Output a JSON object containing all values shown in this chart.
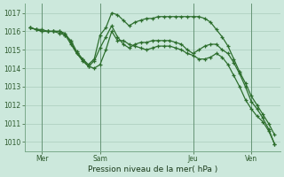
{
  "background_color": "#cce8dc",
  "grid_color": "#aaccbb",
  "line_color": "#2d6e2d",
  "series1_x": [
    0,
    0.5,
    1,
    1.5,
    2,
    2.5,
    3,
    3.5,
    4,
    4.5,
    5,
    5.5,
    6,
    6.5,
    7,
    7.5,
    8,
    8.5,
    9,
    9.5,
    10,
    10.5,
    11,
    11.5,
    12,
    12.5,
    13,
    13.5,
    14,
    14.5,
    15,
    15.5,
    16,
    16.5,
    17,
    17.5,
    18,
    18.5,
    19,
    19.5,
    20,
    20.5,
    21
  ],
  "series1_y": [
    1016.2,
    1016.1,
    1016.0,
    1016.0,
    1016.0,
    1016.0,
    1015.8,
    1015.5,
    1014.9,
    1014.5,
    1014.2,
    1014.5,
    1015.8,
    1016.2,
    1017.0,
    1016.9,
    1016.6,
    1016.3,
    1016.5,
    1016.6,
    1016.7,
    1016.7,
    1016.8,
    1016.8,
    1016.8,
    1016.8,
    1016.8,
    1016.8,
    1016.8,
    1016.8,
    1016.7,
    1016.5,
    1016.1,
    1015.7,
    1015.2,
    1014.5,
    1013.8,
    1013.2,
    1012.5,
    1012.0,
    1011.5,
    1011.0,
    1010.4
  ],
  "series2_x": [
    0,
    0.5,
    1,
    1.5,
    2,
    2.5,
    3,
    3.5,
    4,
    4.5,
    5,
    5.5,
    6,
    6.5,
    7,
    7.5,
    8,
    8.5,
    9,
    9.5,
    10,
    10.5,
    11,
    11.5,
    12,
    12.5,
    13,
    13.5,
    14,
    14.5,
    15,
    15.5,
    16,
    16.5,
    17,
    17.5,
    18,
    18.5,
    19,
    19.5,
    20,
    20.5,
    21
  ],
  "series2_y": [
    1016.2,
    1016.1,
    1016.1,
    1016.0,
    1016.0,
    1016.0,
    1015.9,
    1015.4,
    1014.8,
    1014.4,
    1014.1,
    1014.4,
    1015.1,
    1015.7,
    1016.3,
    1015.7,
    1015.3,
    1015.1,
    1015.3,
    1015.4,
    1015.4,
    1015.5,
    1015.5,
    1015.5,
    1015.5,
    1015.4,
    1015.3,
    1015.0,
    1014.8,
    1015.0,
    1015.2,
    1015.3,
    1015.3,
    1015.0,
    1014.8,
    1014.3,
    1013.7,
    1013.0,
    1012.2,
    1011.8,
    1011.3,
    1010.7,
    1009.9
  ],
  "series3_x": [
    0,
    0.5,
    1,
    1.5,
    2,
    2.5,
    3,
    3.5,
    4,
    4.5,
    5,
    5.5,
    6,
    6.5,
    7,
    7.5,
    8,
    8.5,
    9,
    9.5,
    10,
    10.5,
    11,
    11.5,
    12,
    12.5,
    13,
    13.5,
    14,
    14.5,
    15,
    15.5,
    16,
    16.5,
    17,
    17.5,
    18,
    18.5,
    19,
    19.5,
    20,
    20.5,
    21
  ],
  "series3_y": [
    1016.2,
    1016.1,
    1016.0,
    1016.0,
    1016.0,
    1015.9,
    1015.8,
    1015.3,
    1014.8,
    1014.5,
    1014.1,
    1014.0,
    1014.2,
    1015.0,
    1016.0,
    1015.5,
    1015.5,
    1015.3,
    1015.2,
    1015.1,
    1015.0,
    1015.1,
    1015.2,
    1015.2,
    1015.2,
    1015.1,
    1015.0,
    1014.8,
    1014.7,
    1014.5,
    1014.5,
    1014.6,
    1014.8,
    1014.6,
    1014.2,
    1013.6,
    1013.0,
    1012.3,
    1011.8,
    1011.4,
    1011.1,
    1010.6,
    1009.9
  ],
  "xtick_positions": [
    1,
    6,
    14,
    19
  ],
  "xtick_labels": [
    "Mer",
    "Sam",
    "Jeu",
    "Ven"
  ],
  "xlabel_text": "Pression niveau de la mer( hPa )",
  "ylim": [
    1009.5,
    1017.5
  ],
  "ytick_values": [
    1010,
    1011,
    1012,
    1013,
    1014,
    1015,
    1016,
    1017
  ],
  "xlim": [
    -0.5,
    21.5
  ],
  "vline_positions": [
    1,
    6,
    14,
    19
  ]
}
